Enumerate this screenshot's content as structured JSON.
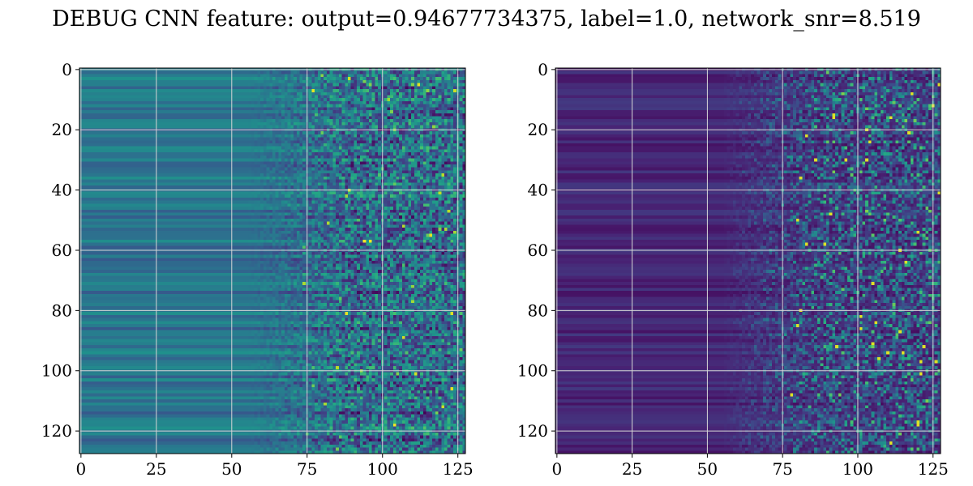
{
  "title": "DEBUG CNN feature: output=0.94677734375, label=1.0, network_snr=8.519",
  "chart_data": [
    {
      "type": "heatmap",
      "colormap": "viridis",
      "rows": 128,
      "cols": 128,
      "xlim": [
        0,
        127
      ],
      "ylim": [
        127,
        0
      ],
      "xticks": [
        0,
        25,
        50,
        75,
        100,
        125
      ],
      "yticks": [
        0,
        20,
        40,
        60,
        80,
        100,
        120
      ],
      "grid": true,
      "description_values": "left-half columns 0-75 smooth horizontal bands at mid intensity; columns 75-127 noisy with higher intensity speckles"
    },
    {
      "type": "heatmap",
      "colormap": "viridis",
      "rows": 128,
      "cols": 128,
      "xlim": [
        0,
        127
      ],
      "ylim": [
        127,
        0
      ],
      "xticks": [
        0,
        25,
        50,
        75,
        100,
        125
      ],
      "yticks": [
        0,
        20,
        40,
        60,
        80,
        100,
        120
      ],
      "grid": true,
      "description_values": "mostly low intensity; columns 50-127 noisy with occasional bright yellow pixels"
    }
  ]
}
